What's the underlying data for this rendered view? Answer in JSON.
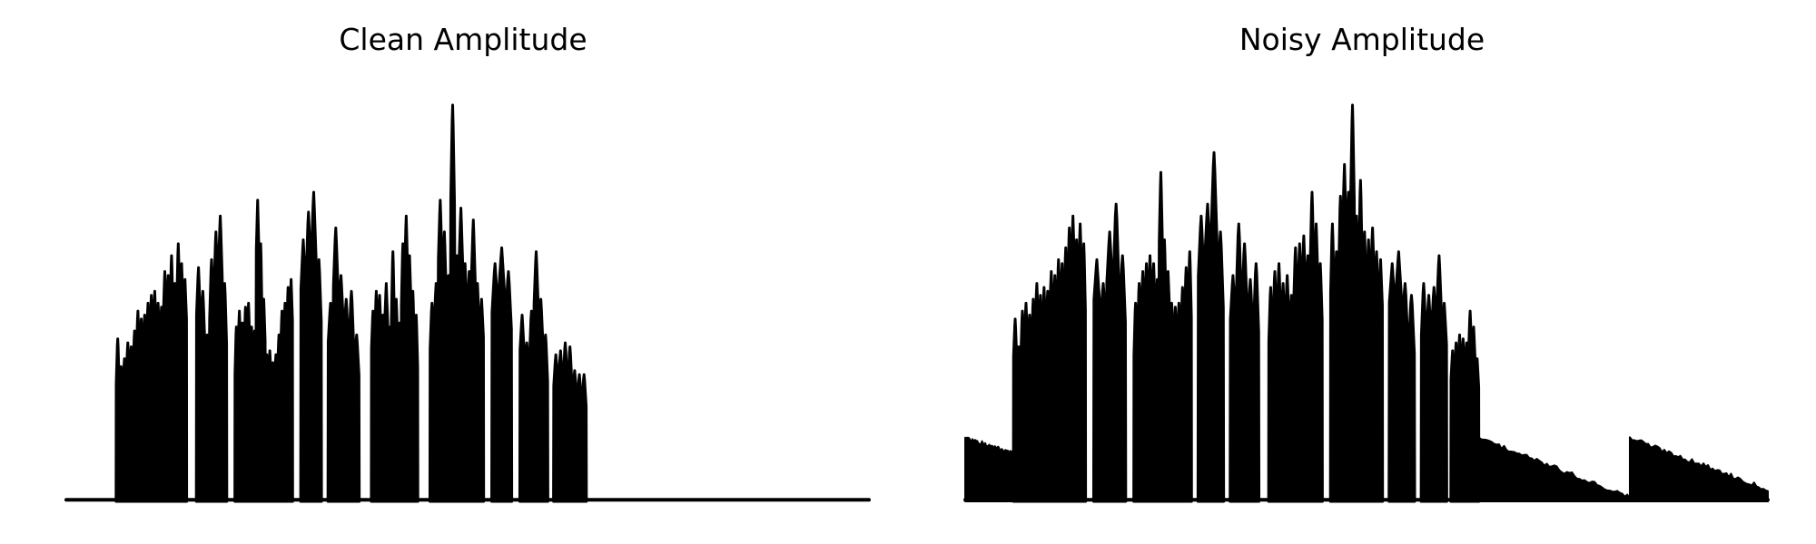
{
  "chart_data": [
    {
      "type": "area",
      "title": "Clean Amplitude",
      "axes_visible": false,
      "grid": false,
      "legend": "none",
      "line_color": "#000000",
      "fill_color": "#000000",
      "baseline_level": 0.004,
      "ylim": [
        0,
        1.05
      ],
      "x_range": [
        0,
        1
      ],
      "bursts": [
        {
          "start": 0.062,
          "end": 0.15,
          "peaks": [
            0.41,
            0.34,
            0.36,
            0.4,
            0.39,
            0.43,
            0.48,
            0.46,
            0.47,
            0.5,
            0.52,
            0.53,
            0.5,
            0.49,
            0.58,
            0.57,
            0.62,
            0.55,
            0.65,
            0.6,
            0.56
          ]
        },
        {
          "start": 0.162,
          "end": 0.2,
          "peaks": [
            0.59,
            0.53,
            0.42,
            0.61,
            0.68,
            0.72,
            0.55
          ]
        },
        {
          "start": 0.21,
          "end": 0.282,
          "peaks": [
            0.44,
            0.48,
            0.45,
            0.49,
            0.5,
            0.44,
            0.43,
            0.76,
            0.65,
            0.51,
            0.37,
            0.38,
            0.35,
            0.37,
            0.42,
            0.48,
            0.5,
            0.54,
            0.56
          ]
        },
        {
          "start": 0.292,
          "end": 0.318,
          "peaks": [
            0.66,
            0.73,
            0.78,
            0.61
          ]
        },
        {
          "start": 0.326,
          "end": 0.365,
          "peaks": [
            0.5,
            0.69,
            0.57,
            0.51,
            0.53,
            0.42
          ]
        },
        {
          "start": 0.38,
          "end": 0.438,
          "peaks": [
            0.48,
            0.53,
            0.52,
            0.47,
            0.55,
            0.44,
            0.63,
            0.51,
            0.45,
            0.65,
            0.72,
            0.62,
            0.53,
            0.47
          ]
        },
        {
          "start": 0.453,
          "end": 0.52,
          "peaks": [
            0.5,
            0.55,
            0.76,
            0.68,
            0.57,
            1.0,
            0.62,
            0.74,
            0.6,
            0.58,
            0.71,
            0.55,
            0.51
          ]
        },
        {
          "start": 0.53,
          "end": 0.555,
          "peaks": [
            0.6,
            0.64,
            0.58
          ]
        },
        {
          "start": 0.565,
          "end": 0.6,
          "peaks": [
            0.47,
            0.4,
            0.48,
            0.63,
            0.51,
            0.42
          ]
        },
        {
          "start": 0.607,
          "end": 0.648,
          "peaks": [
            0.37,
            0.38,
            0.4,
            0.39,
            0.33,
            0.32,
            0.32
          ]
        }
      ],
      "floor_segments": []
    },
    {
      "type": "area",
      "title": "Noisy Amplitude",
      "axes_visible": false,
      "grid": false,
      "legend": "none",
      "line_color": "#000000",
      "fill_color": "#000000",
      "baseline_level": 0.004,
      "ylim": [
        0,
        1.05
      ],
      "x_range": [
        0,
        1
      ],
      "bursts": [
        {
          "start": 0.06,
          "end": 0.15,
          "peaks": [
            0.46,
            0.39,
            0.48,
            0.5,
            0.47,
            0.51,
            0.55,
            0.52,
            0.54,
            0.53,
            0.58,
            0.57,
            0.61,
            0.6,
            0.64,
            0.69,
            0.72,
            0.66,
            0.7,
            0.65
          ]
        },
        {
          "start": 0.16,
          "end": 0.2,
          "peaks": [
            0.61,
            0.55,
            0.68,
            0.75,
            0.62
          ]
        },
        {
          "start": 0.21,
          "end": 0.282,
          "peaks": [
            0.5,
            0.55,
            0.58,
            0.6,
            0.62,
            0.6,
            0.56,
            0.83,
            0.66,
            0.58,
            0.5,
            0.49,
            0.5,
            0.54,
            0.59,
            0.63
          ]
        },
        {
          "start": 0.29,
          "end": 0.322,
          "peaks": [
            0.72,
            0.75,
            0.88,
            0.68
          ]
        },
        {
          "start": 0.33,
          "end": 0.366,
          "peaks": [
            0.57,
            0.7,
            0.65,
            0.56,
            0.6
          ]
        },
        {
          "start": 0.378,
          "end": 0.445,
          "peaks": [
            0.54,
            0.58,
            0.6,
            0.55,
            0.57,
            0.52,
            0.64,
            0.65,
            0.67,
            0.62,
            0.78,
            0.7,
            0.6
          ]
        },
        {
          "start": 0.455,
          "end": 0.52,
          "peaks": [
            0.7,
            0.63,
            0.77,
            0.85,
            0.78,
            1.0,
            0.72,
            0.81,
            0.68,
            0.66,
            0.69,
            0.63,
            0.61
          ]
        },
        {
          "start": 0.528,
          "end": 0.56,
          "peaks": [
            0.6,
            0.63,
            0.55,
            0.52
          ]
        },
        {
          "start": 0.568,
          "end": 0.6,
          "peaks": [
            0.55,
            0.52,
            0.54,
            0.62,
            0.5
          ]
        },
        {
          "start": 0.605,
          "end": 0.64,
          "peaks": [
            0.38,
            0.4,
            0.42,
            0.41,
            0.4,
            0.48,
            0.44,
            0.36
          ]
        }
      ],
      "floor_segments": [
        {
          "start": 0.0,
          "end": 0.06,
          "level_start": 0.16,
          "level_end": 0.12
        },
        {
          "start": 0.64,
          "end": 0.828,
          "level_start": 0.16,
          "level_end": 0.01
        },
        {
          "start": 0.828,
          "end": 1.0,
          "level_start": 0.16,
          "level_end": 0.03
        }
      ]
    }
  ]
}
